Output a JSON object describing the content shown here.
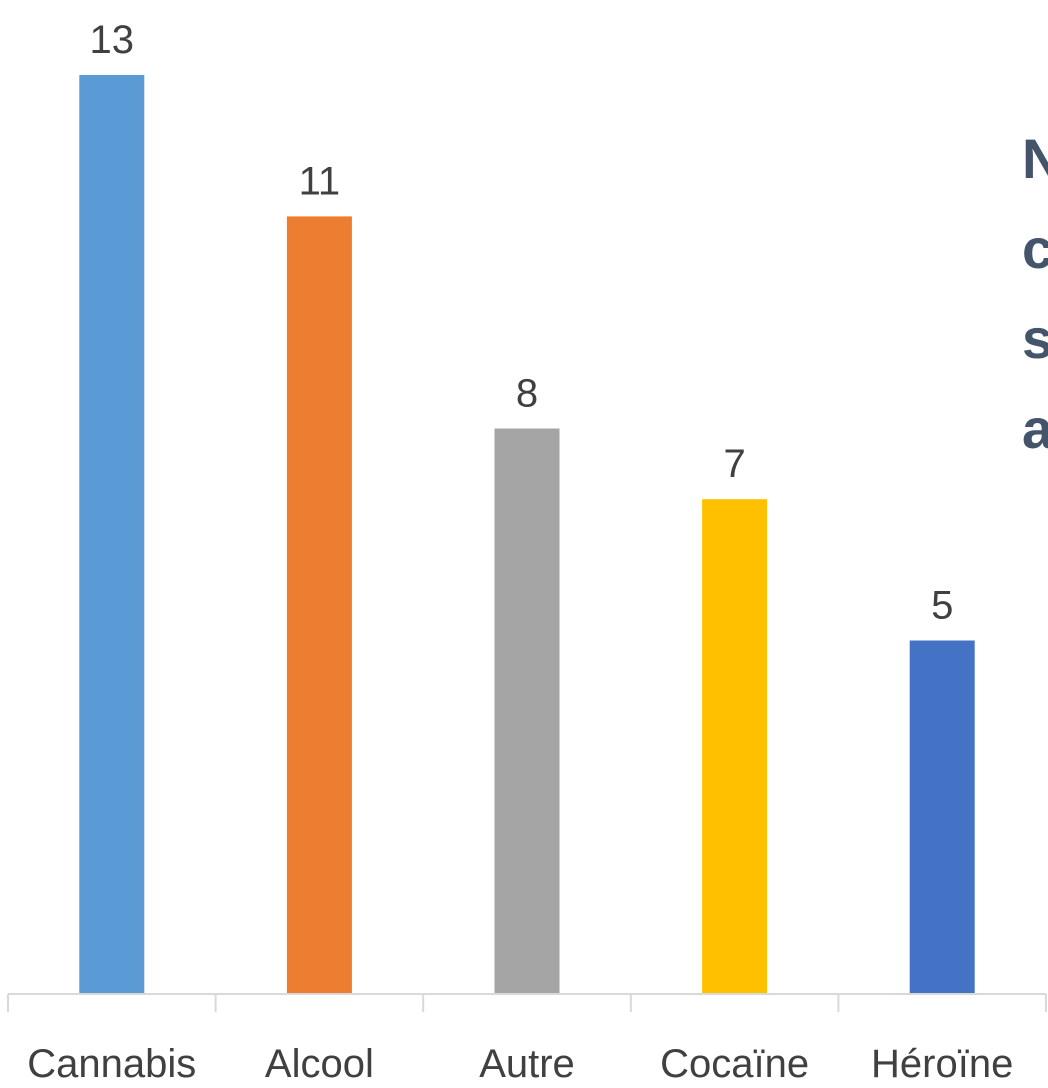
{
  "chart_data": {
    "type": "bar",
    "categories": [
      "Cannabis",
      "Alcool",
      "Autre",
      "Cocaïne",
      "Héroïne"
    ],
    "values": [
      13,
      11,
      8,
      7,
      5
    ],
    "colors": [
      "#5b9bd5",
      "#ed7d31",
      "#a5a5a5",
      "#ffc000",
      "#4472c4"
    ],
    "ylim": [
      0,
      13
    ],
    "grid": false,
    "legend": "none",
    "side_text_fragments": [
      "N",
      "c",
      "s",
      "a"
    ]
  }
}
